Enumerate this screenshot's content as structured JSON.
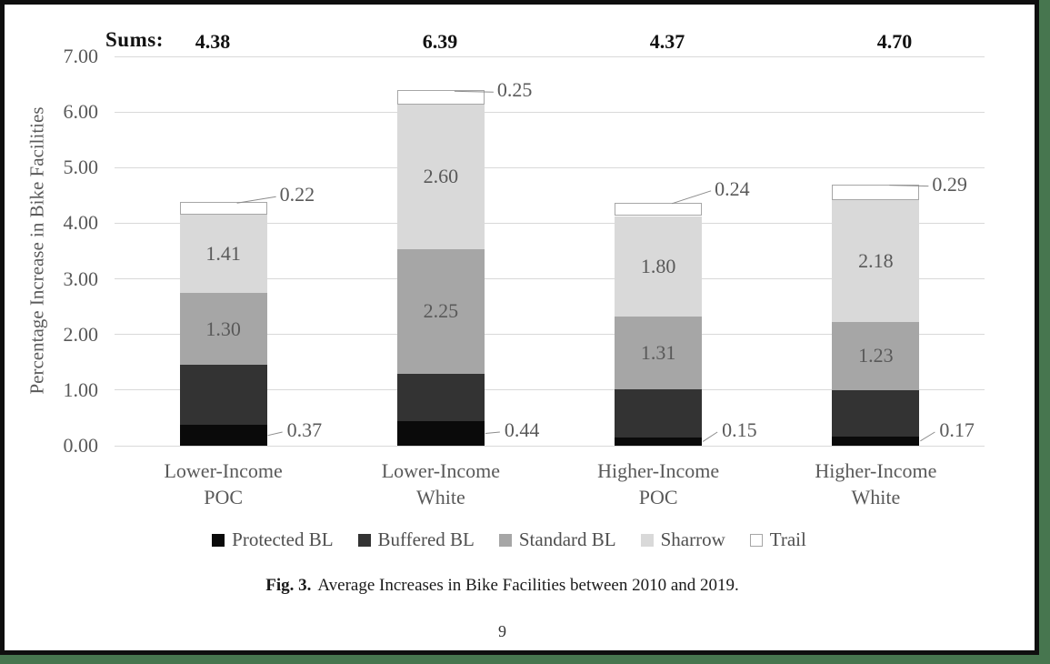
{
  "page": {
    "border_outer_color": "#47764f",
    "border_inner_color": "#0f0f0f",
    "background": "#ffffff"
  },
  "chart_data": {
    "type": "stacked-bar",
    "title": "",
    "ylabel": "Percentage Increase in Bike Facilities",
    "xlabel": "",
    "ylim": [
      0,
      7
    ],
    "yticks": [
      "0.00",
      "1.00",
      "2.00",
      "3.00",
      "4.00",
      "5.00",
      "6.00",
      "7.00"
    ],
    "grid": true,
    "legend_position": "bottom",
    "gridline_color": "#d9d9d9",
    "label_color": "#595959",
    "sums_label": "Sums:",
    "sums": [
      "4.38",
      "6.39",
      "4.37",
      "4.70"
    ],
    "categories": [
      {
        "line1": "Lower-Income",
        "line2": "POC"
      },
      {
        "line1": "Lower-Income",
        "line2": "White"
      },
      {
        "line1": "Higher-Income",
        "line2": "POC"
      },
      {
        "line1": "Higher-Income",
        "line2": "White"
      }
    ],
    "series": [
      {
        "name": "Protected BL",
        "color": "#0a0a0a",
        "values": [
          0.37,
          0.44,
          0.15,
          0.17
        ],
        "labels": [
          "0.37",
          "0.44",
          "0.15",
          "0.17"
        ],
        "label_style": "callout-right"
      },
      {
        "name": "Buffered BL",
        "color": "#333333",
        "values": [
          1.08,
          0.85,
          0.87,
          0.83
        ],
        "labels": [
          null,
          null,
          null,
          null
        ],
        "label_style": "none"
      },
      {
        "name": "Standard BL",
        "color": "#a6a6a6",
        "values": [
          1.3,
          2.25,
          1.31,
          1.23
        ],
        "labels": [
          "1.30",
          "2.25",
          "1.31",
          "1.23"
        ],
        "label_style": "inside"
      },
      {
        "name": "Sharrow",
        "color": "#d9d9d9",
        "values": [
          1.41,
          2.6,
          1.8,
          2.18
        ],
        "labels": [
          "1.41",
          "2.60",
          "1.80",
          "2.18"
        ],
        "label_style": "inside"
      },
      {
        "name": "Trail",
        "color": "#ffffff",
        "border_color": "#a6a6a6",
        "values": [
          0.22,
          0.25,
          0.24,
          0.29
        ],
        "labels": [
          "0.22",
          "0.25",
          "0.24",
          "0.29"
        ],
        "label_style": "callout-top"
      }
    ]
  },
  "caption": {
    "prefix": "Fig. 3.",
    "text": "Average Increases in Bike Facilities between 2010 and 2019."
  },
  "page_number": "9"
}
